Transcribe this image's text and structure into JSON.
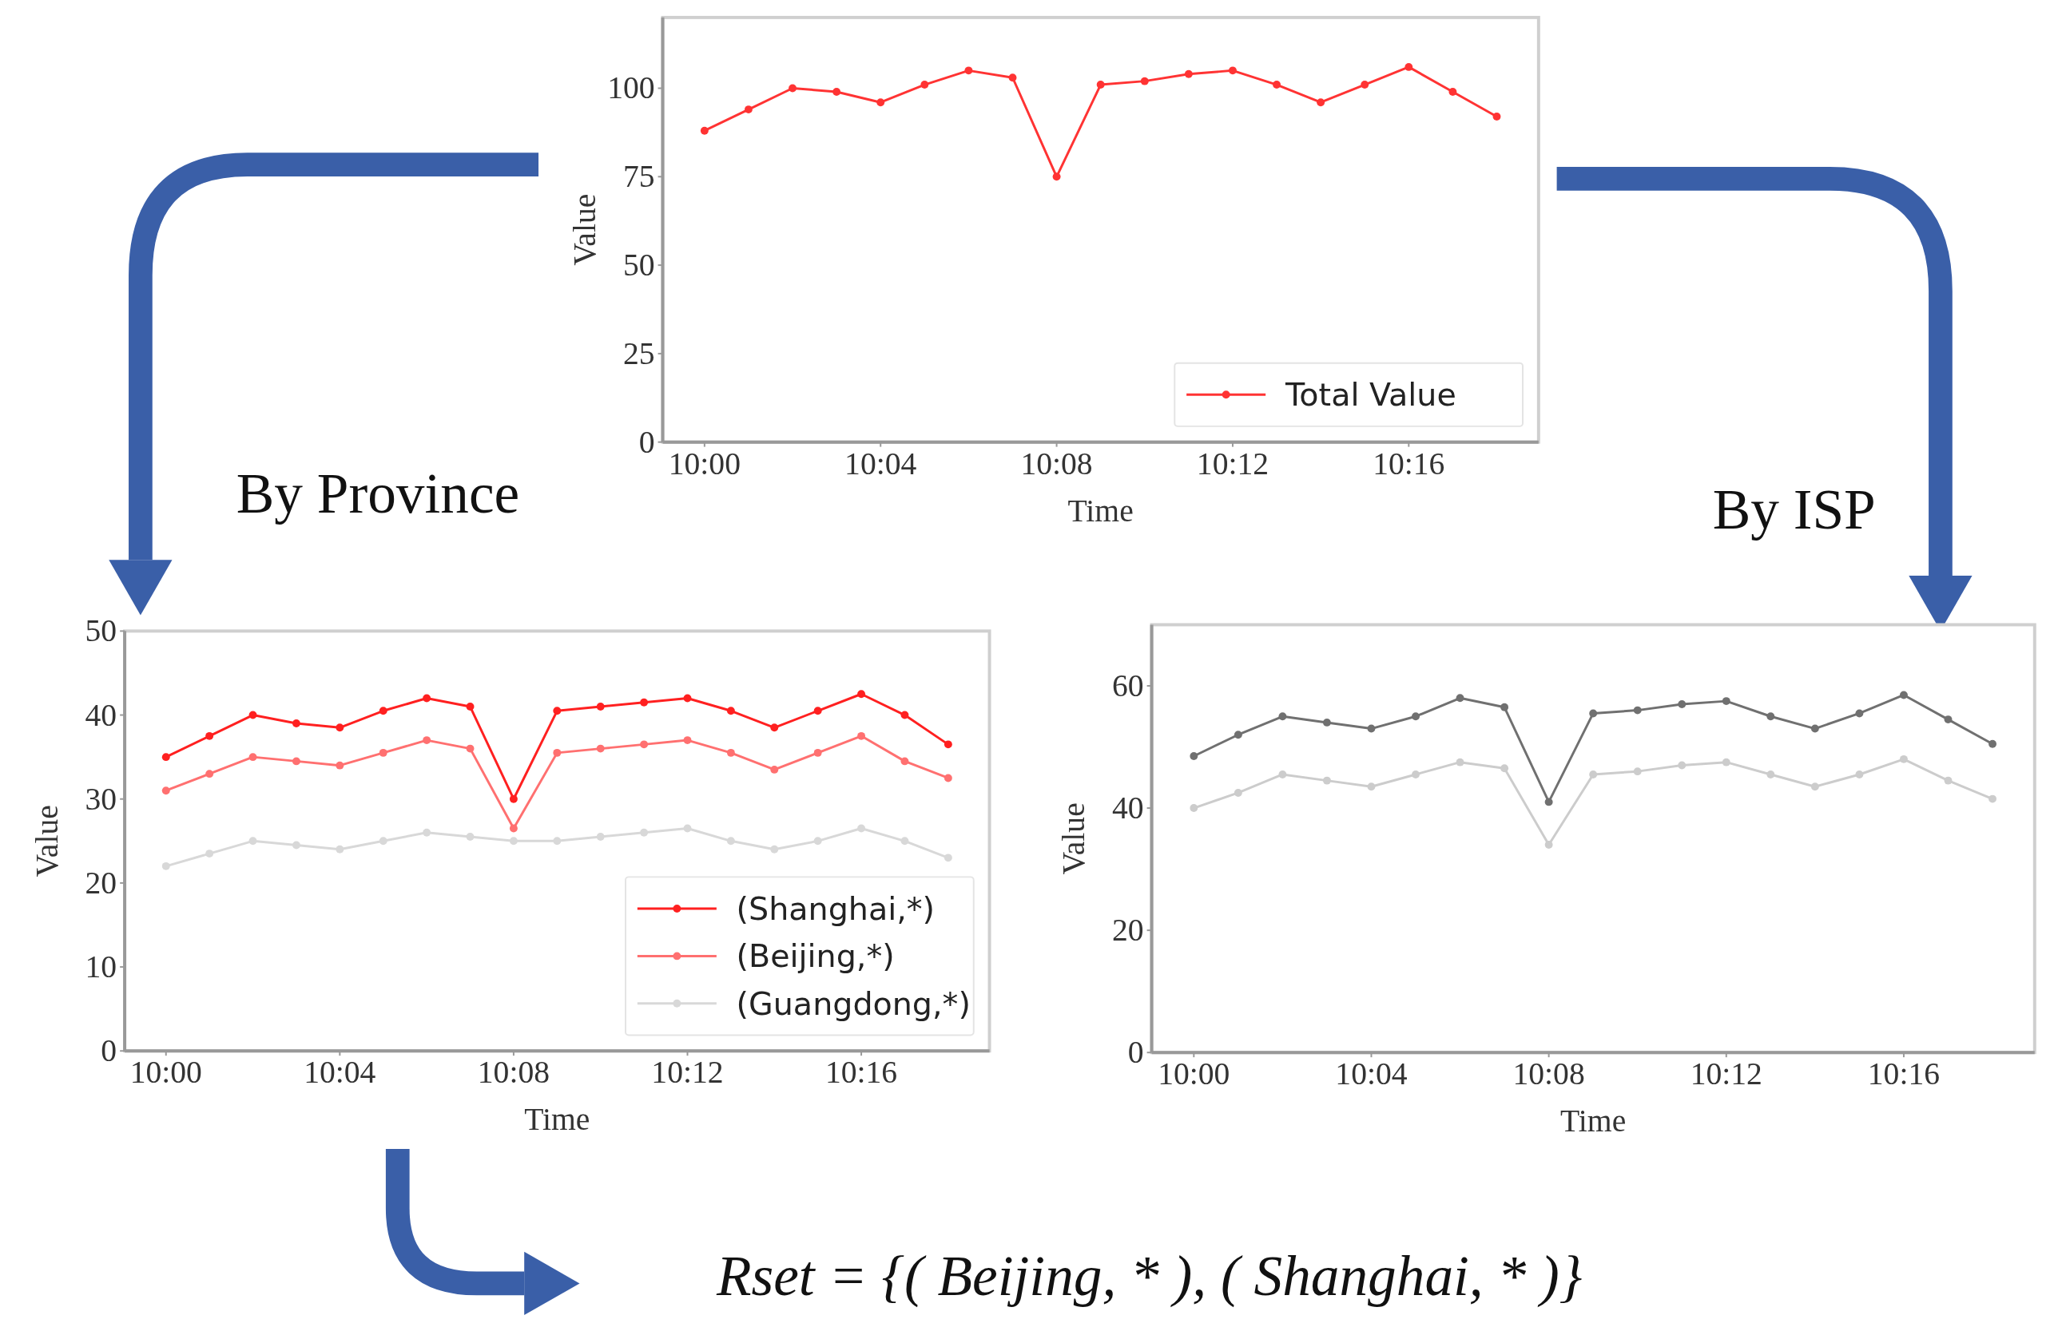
{
  "chart_data": [
    {
      "type": "line",
      "xlabel": "Time",
      "ylabel": "Value",
      "categories": [
        "10:00",
        null,
        null,
        null,
        "10:04",
        null,
        null,
        null,
        "10:08",
        null,
        null,
        null,
        "10:12",
        null,
        null,
        null,
        "10:16",
        null,
        null
      ],
      "ylim": [
        0,
        120
      ],
      "yticks": [
        0,
        25,
        50,
        75,
        100
      ],
      "grid": false,
      "legend": "bottom right",
      "marker": "circle",
      "series": [
        {
          "name": "Total Value",
          "color": "#ff3333",
          "values": [
            88,
            94,
            100,
            99,
            96,
            101,
            105,
            103,
            75,
            101,
            102,
            104,
            105,
            101,
            96,
            101,
            106,
            99,
            92
          ]
        }
      ]
    },
    {
      "type": "line",
      "xlabel": "Time",
      "ylabel": "Value",
      "categories": [
        "10:00",
        null,
        null,
        null,
        "10:04",
        null,
        null,
        null,
        "10:08",
        null,
        null,
        null,
        "10:12",
        null,
        null,
        null,
        "10:16",
        null,
        null
      ],
      "ylim": [
        0,
        50
      ],
      "yticks": [
        0,
        10,
        20,
        30,
        40,
        50
      ],
      "grid": false,
      "legend": "bottom right",
      "marker": "circle",
      "annotations": [
        "By Province",
        "Rset = {( Beijing, * ), ( Shanghai, * )}"
      ],
      "series": [
        {
          "name": "(Shanghai,*)",
          "color": "#ff2020",
          "values": [
            35,
            37.5,
            40,
            39,
            38.5,
            40.5,
            42,
            41,
            30,
            40.5,
            41,
            41.5,
            42,
            40.5,
            38.5,
            40.5,
            42.5,
            40,
            36.5
          ]
        },
        {
          "name": "(Beijing,*)",
          "color": "#ff7070",
          "values": [
            31,
            33,
            35,
            34.5,
            34,
            35.5,
            37,
            36,
            26.5,
            35.5,
            36,
            36.5,
            37,
            35.5,
            33.5,
            35.5,
            37.5,
            34.5,
            32.5
          ]
        },
        {
          "name": "(Guangdong,*)",
          "color": "#d8d8d8",
          "values": [
            22,
            23.5,
            25,
            24.5,
            24,
            25,
            26,
            25.5,
            25,
            25,
            25.5,
            26,
            26.5,
            25,
            24,
            25,
            26.5,
            25,
            23
          ]
        }
      ]
    },
    {
      "type": "line",
      "xlabel": "Time",
      "ylabel": "Value",
      "categories": [
        "10:00",
        null,
        null,
        null,
        "10:04",
        null,
        null,
        null,
        "10:08",
        null,
        null,
        null,
        "10:12",
        null,
        null,
        null,
        "10:16",
        null,
        null
      ],
      "ylim": [
        0,
        70
      ],
      "yticks": [
        0,
        20,
        40,
        60
      ],
      "grid": false,
      "marker": "circle",
      "annotations": [
        "By ISP"
      ],
      "series": [
        {
          "color": "#707070",
          "values": [
            48.5,
            52,
            55,
            54,
            53,
            55,
            58,
            56.5,
            41,
            55.5,
            56,
            57,
            57.5,
            55,
            53,
            55.5,
            58.5,
            54.5,
            50.5
          ]
        },
        {
          "color": "#cccccc",
          "values": [
            40,
            42.5,
            45.5,
            44.5,
            43.5,
            45.5,
            47.5,
            46.5,
            34,
            45.5,
            46,
            47,
            47.5,
            45.5,
            43.5,
            45.5,
            48,
            44.5,
            41.5
          ]
        }
      ]
    }
  ]
}
